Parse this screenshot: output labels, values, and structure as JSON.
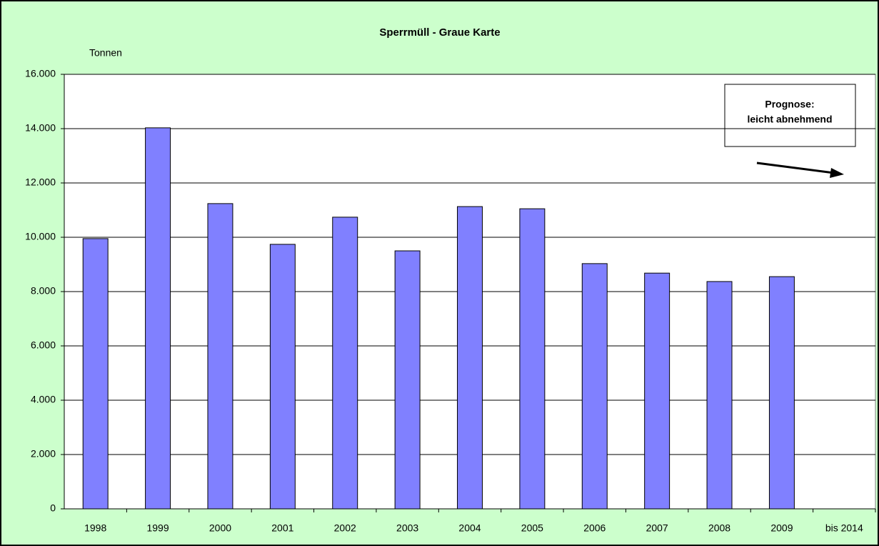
{
  "chart_data": {
    "type": "bar",
    "title": "Sperrmüll - Graue Karte",
    "y_label": "Tonnen",
    "categories": [
      "1998",
      "1999",
      "2000",
      "2001",
      "2002",
      "2003",
      "2004",
      "2005",
      "2006",
      "2007",
      "2008",
      "2009",
      "bis 2014"
    ],
    "values": [
      9950,
      14030,
      11240,
      9740,
      10740,
      9500,
      11130,
      11050,
      9030,
      8680,
      8370,
      8550,
      null
    ],
    "color": "#8080ff",
    "ylim": [
      0,
      16000
    ],
    "yticks": [
      0,
      {
        "value": 2000,
        "label": "2.000"
      },
      {
        "value": 4000,
        "label": "4.000"
      },
      {
        "value": 6000,
        "label": "6.000"
      },
      {
        "value": 8000,
        "label": "8.000"
      },
      {
        "value": 10000,
        "label": "10.000"
      },
      {
        "value": 12000,
        "label": "12.000"
      },
      {
        "value": 14000,
        "label": "14.000"
      },
      {
        "value": 16000,
        "label": "16.000"
      }
    ],
    "grid": true,
    "annotation": [
      "Prognose:",
      "leicht abnehmend"
    ]
  }
}
